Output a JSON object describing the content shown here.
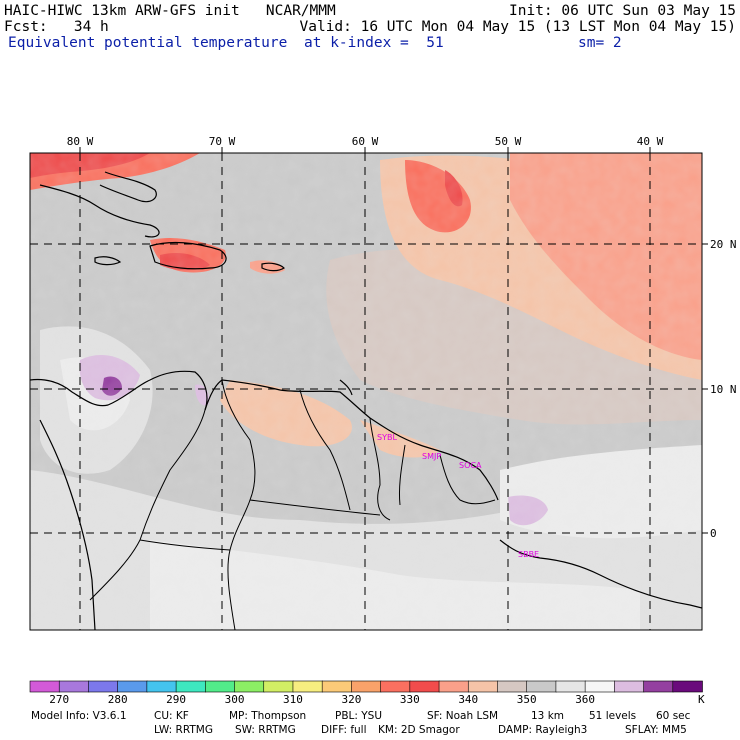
{
  "header": {
    "model_line": "HAIC-HIWC 13km ARW-GFS init   NCAR/MMM",
    "init": "Init: 06 UTC Sun 03 May 15",
    "fcst": "Fcst:   34 h",
    "valid": "Valid: 16 UTC Mon 04 May 15 (13 LST Mon 04 May 15)",
    "field": "Equivalent potential temperature",
    "level": "at k-index =  51",
    "smoothing": "sm= 2"
  },
  "map": {
    "lon_labels": [
      "80 W",
      "70 W",
      "60 W",
      "50 W",
      "40 W"
    ],
    "lat_labels": [
      "20 N",
      "10 N",
      "0"
    ],
    "stations": [
      "SYBL",
      "SMJP",
      "SOCA",
      "SBBE"
    ],
    "colors": {
      "hot_red": "#ee4a4a",
      "red": "#fa6e5c",
      "salmon": "#faa08a",
      "peach": "#f5c4a8",
      "tan": "#d6c8c2",
      "gray": "#c9c9c9",
      "light_gray": "#e1e1e1",
      "lightest": "#ececec",
      "lilac": "#dcbde0",
      "purple": "#9440a0"
    }
  },
  "colorbar": {
    "colors": [
      "#d35ad8",
      "#a878dc",
      "#7c78ec",
      "#5a9aec",
      "#44c4ee",
      "#3ee8c0",
      "#52ec8a",
      "#8cee64",
      "#d2ee64",
      "#f7ee80",
      "#fcca78",
      "#f9a26a",
      "#fa7060",
      "#f14c4c",
      "#faa08a",
      "#f5c4a8",
      "#d6c8c2",
      "#c9c9c9",
      "#e6e6e6",
      "#f6f6f6",
      "#dcbde0",
      "#9440a0",
      "#6a0a7c"
    ],
    "tick_labels": [
      "270",
      "280",
      "290",
      "300",
      "310",
      "320",
      "330",
      "340",
      "350",
      "360"
    ],
    "unit": "K"
  },
  "footer": {
    "line1": [
      {
        "label": "Model Info: V3.6.1"
      },
      {
        "label": "CU: KF"
      },
      {
        "label": "MP: Thompson"
      },
      {
        "label": "PBL: YSU"
      },
      {
        "label": "SF: Noah LSM"
      },
      {
        "label": "13 km"
      },
      {
        "label": "51 levels"
      },
      {
        "label": "60 sec"
      }
    ],
    "line2": [
      {
        "label": "LW: RRTMG"
      },
      {
        "label": "SW: RRTMG"
      },
      {
        "label": "DIFF: full"
      },
      {
        "label": "KM: 2D Smagor"
      },
      {
        "label": "DAMP: Rayleigh3"
      },
      {
        "label": "SFLAY: MM5"
      }
    ]
  }
}
